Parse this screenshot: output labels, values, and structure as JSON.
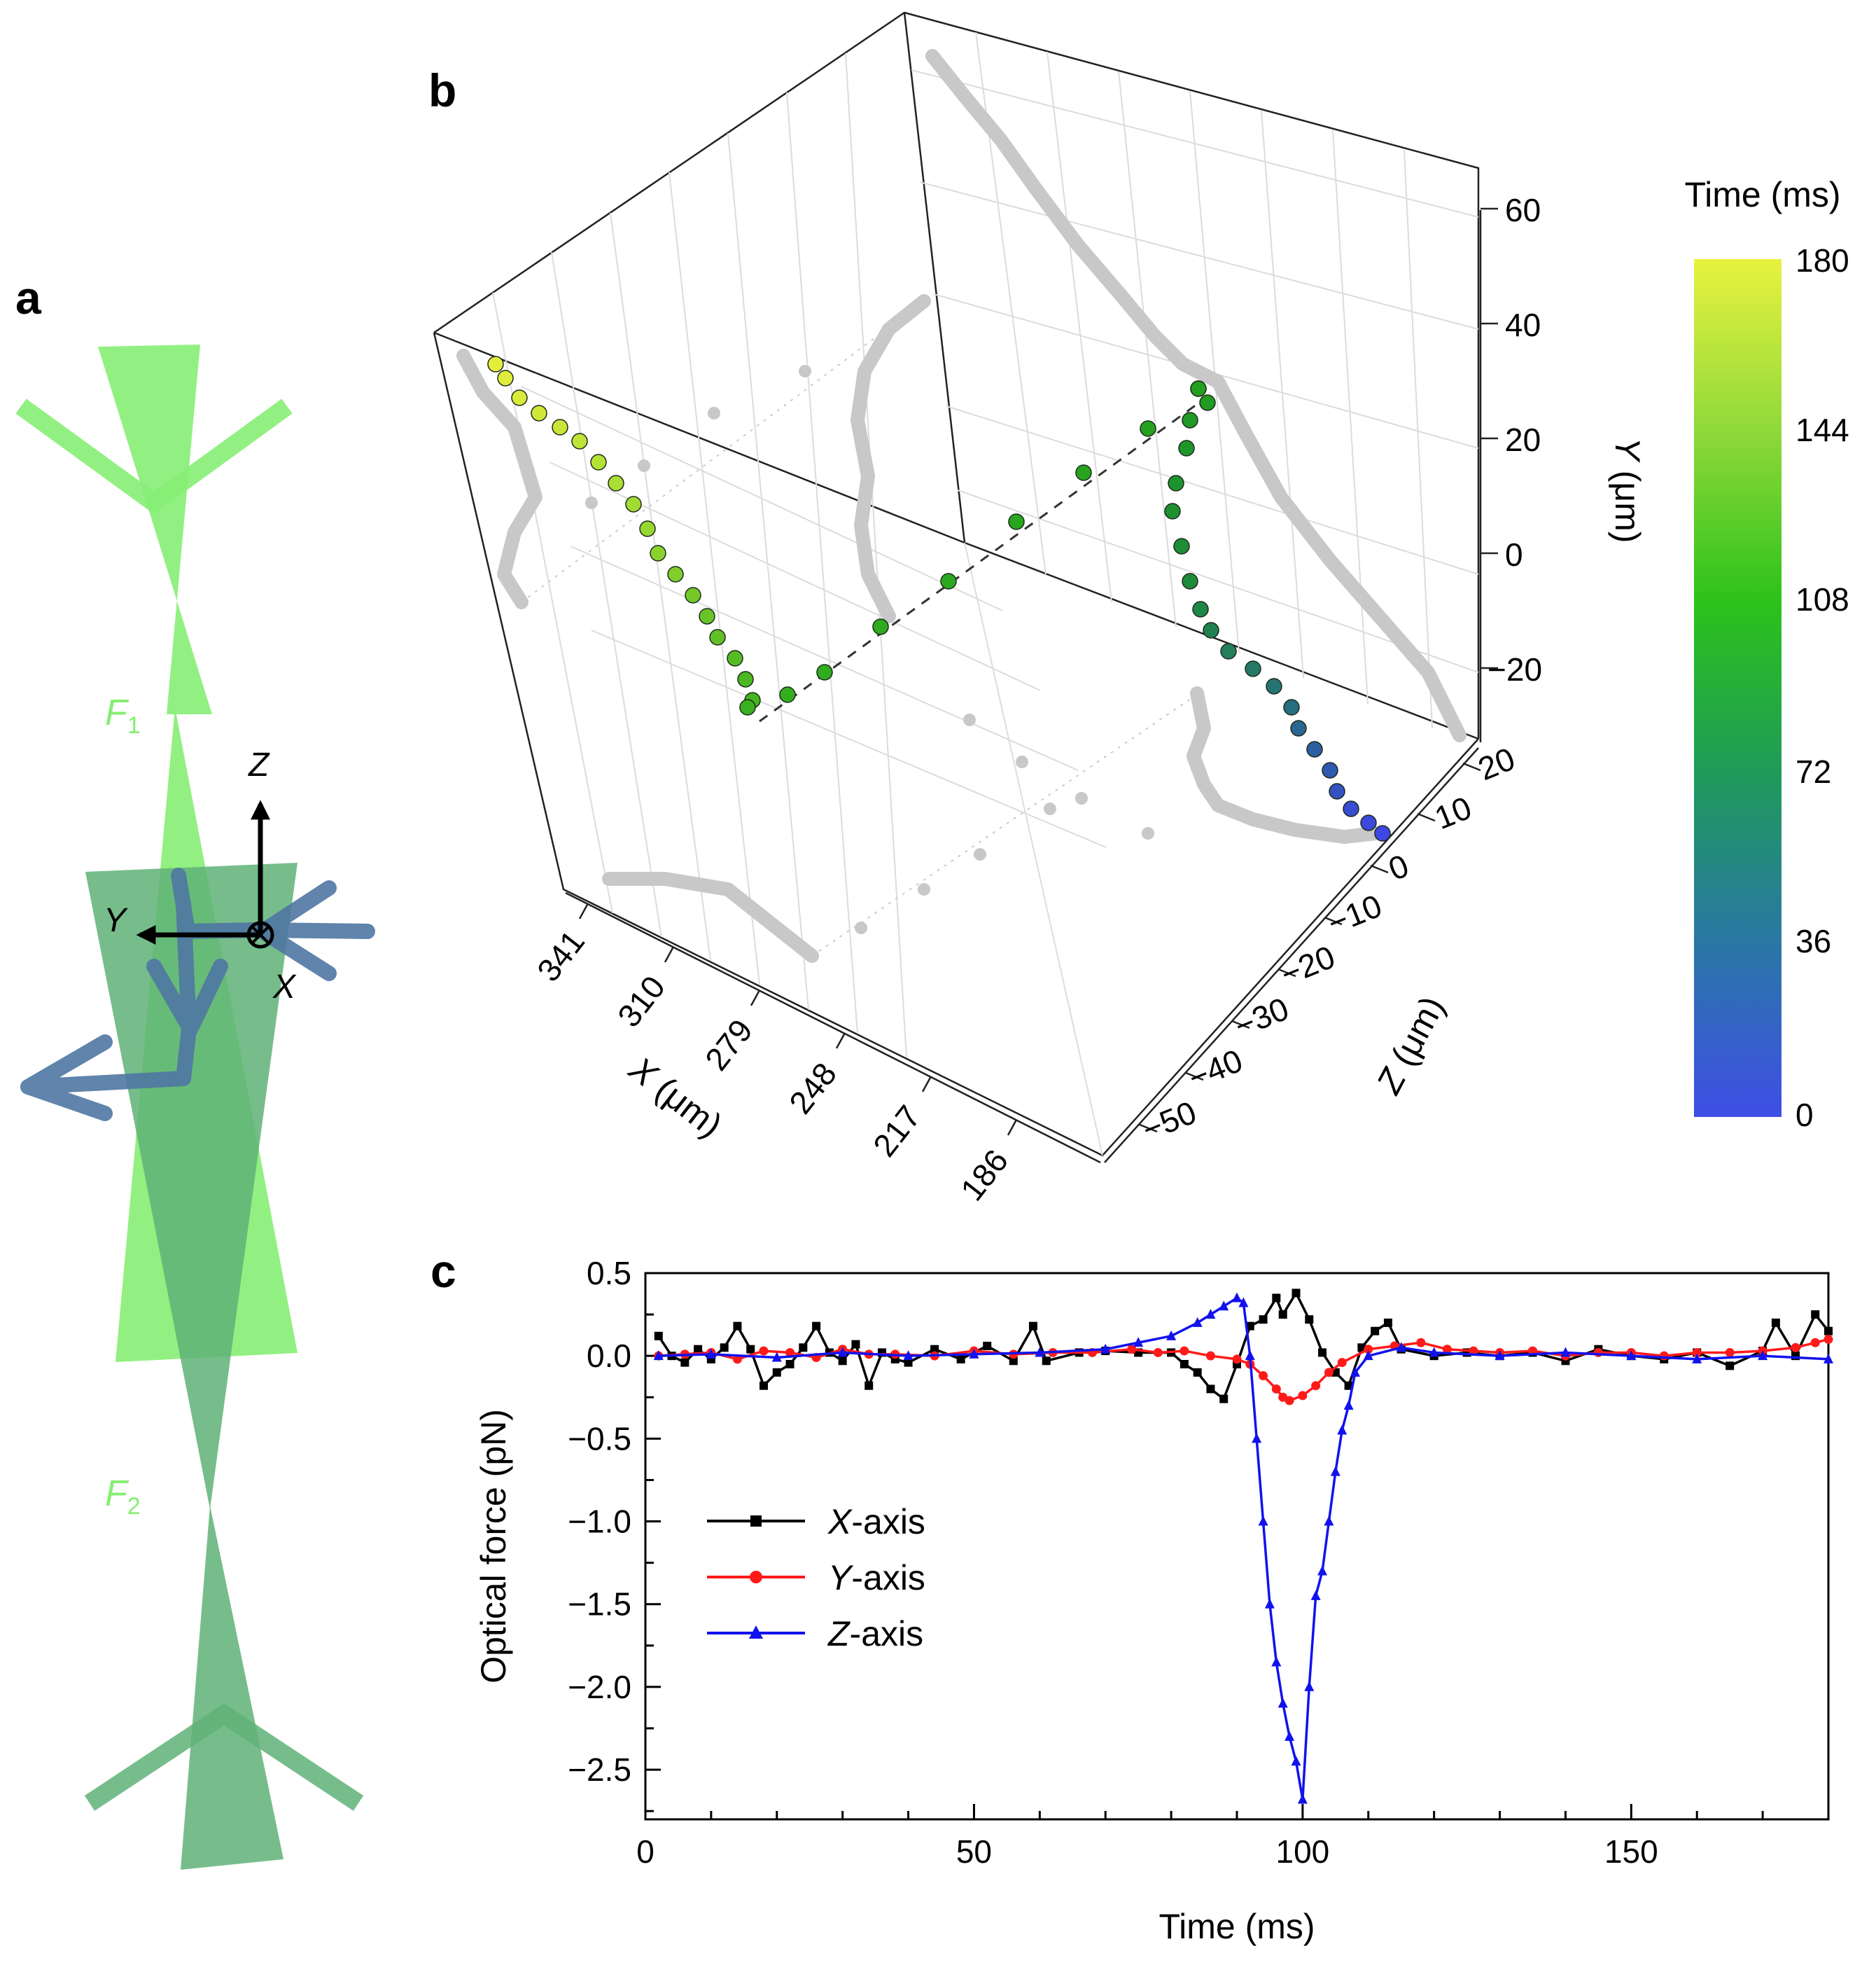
{
  "panels": {
    "a": "a",
    "b": "b",
    "c": "c"
  },
  "panel_a": {
    "beam_labels": [
      "F1",
      "F2"
    ],
    "beam_label_main": "F",
    "beam_label_subs": [
      "1",
      "2"
    ],
    "axis_labels": {
      "z": "Z",
      "y": "Y",
      "x": "X"
    },
    "colors": {
      "beam_top": "#86ee74",
      "beam_bottom": "#5fb277",
      "arrows": "#4f77a3",
      "axes": "#000000"
    }
  },
  "panel_b": {
    "type": "scatter3d",
    "x_axis": {
      "label_var": "X",
      "label_unit": " (μm)",
      "ticks": [
        "341",
        "310",
        "279",
        "248",
        "217",
        "186"
      ]
    },
    "y_axis": {
      "label_var": "Y",
      "label_unit": " (μm)",
      "ticks": [
        "60",
        "40",
        "20",
        "0",
        "−20"
      ]
    },
    "z_axis": {
      "label_var": "Z",
      "label_unit": " (μm)",
      "ticks": [
        "20",
        "10",
        "0",
        "−10",
        "−20",
        "−30",
        "−40",
        "−50"
      ]
    },
    "colorbar": {
      "title": "Time (ms)",
      "ticks": [
        "180",
        "144",
        "108",
        "72",
        "36",
        "0"
      ],
      "range": [
        0,
        180
      ],
      "colors": [
        "#3f4ee6",
        "#2a77a6",
        "#1f9a5a",
        "#2cc21a",
        "#8fd93a",
        "#e8f23e"
      ]
    },
    "projection_color": "#c8c8c8"
  },
  "chart_data": {
    "type": "line",
    "xlabel": "Time (ms)",
    "ylabel": "Optical force (pN)",
    "xlim": [
      0,
      180
    ],
    "ylim": [
      -2.8,
      0.5
    ],
    "x_ticks": [
      "0",
      "50",
      "100",
      "150"
    ],
    "y_ticks": [
      "0.5",
      "0.0",
      "−0.5",
      "−1.0",
      "−1.5",
      "−2.0",
      "−2.5"
    ],
    "series": [
      {
        "name": "X-axis",
        "var": "X",
        "suffix": "-axis",
        "color": "#000000",
        "marker": "square",
        "points": [
          [
            2,
            0.12
          ],
          [
            4,
            0.0
          ],
          [
            6,
            -0.04
          ],
          [
            8,
            0.04
          ],
          [
            10,
            -0.02
          ],
          [
            12,
            0.05
          ],
          [
            14,
            0.18
          ],
          [
            16,
            0.04
          ],
          [
            18,
            -0.18
          ],
          [
            20,
            -0.1
          ],
          [
            22,
            -0.05
          ],
          [
            24,
            0.05
          ],
          [
            26,
            0.18
          ],
          [
            28,
            0.02
          ],
          [
            30,
            -0.03
          ],
          [
            32,
            0.07
          ],
          [
            34,
            -0.18
          ],
          [
            36,
            0.02
          ],
          [
            38,
            -0.02
          ],
          [
            40,
            -0.04
          ],
          [
            44,
            0.04
          ],
          [
            48,
            -0.02
          ],
          [
            52,
            0.06
          ],
          [
            56,
            -0.03
          ],
          [
            59,
            0.18
          ],
          [
            61,
            -0.03
          ],
          [
            66,
            0.02
          ],
          [
            70,
            0.03
          ],
          [
            75,
            0.02
          ],
          [
            80,
            0.02
          ],
          [
            82,
            -0.05
          ],
          [
            84,
            -0.1
          ],
          [
            86,
            -0.2
          ],
          [
            88,
            -0.26
          ],
          [
            90,
            -0.05
          ],
          [
            92,
            0.18
          ],
          [
            94,
            0.22
          ],
          [
            96,
            0.35
          ],
          [
            97,
            0.25
          ],
          [
            99,
            0.38
          ],
          [
            101,
            0.22
          ],
          [
            103,
            0.02
          ],
          [
            105,
            -0.1
          ],
          [
            107,
            -0.18
          ],
          [
            109,
            0.05
          ],
          [
            111,
            0.15
          ],
          [
            113,
            0.2
          ],
          [
            115,
            0.04
          ],
          [
            120,
            0.0
          ],
          [
            125,
            0.02
          ],
          [
            130,
            0.0
          ],
          [
            135,
            0.02
          ],
          [
            140,
            -0.03
          ],
          [
            145,
            0.04
          ],
          [
            150,
            0.0
          ],
          [
            155,
            -0.02
          ],
          [
            160,
            0.02
          ],
          [
            165,
            -0.06
          ],
          [
            170,
            0.03
          ],
          [
            172,
            0.2
          ],
          [
            175,
            0.0
          ],
          [
            178,
            0.25
          ],
          [
            180,
            0.15
          ]
        ]
      },
      {
        "name": "Y-axis",
        "var": "Y",
        "suffix": "-axis",
        "color": "#ff1a1a",
        "marker": "circle",
        "points": [
          [
            2,
            0.0
          ],
          [
            6,
            0.01
          ],
          [
            10,
            0.02
          ],
          [
            14,
            -0.02
          ],
          [
            18,
            0.03
          ],
          [
            22,
            0.02
          ],
          [
            26,
            -0.01
          ],
          [
            30,
            0.04
          ],
          [
            34,
            0.01
          ],
          [
            38,
            0.01
          ],
          [
            44,
            0.0
          ],
          [
            50,
            0.03
          ],
          [
            56,
            0.01
          ],
          [
            62,
            0.02
          ],
          [
            68,
            0.02
          ],
          [
            74,
            0.04
          ],
          [
            78,
            0.02
          ],
          [
            82,
            0.03
          ],
          [
            86,
            0.0
          ],
          [
            90,
            -0.02
          ],
          [
            92,
            -0.05
          ],
          [
            94,
            -0.12
          ],
          [
            96,
            -0.2
          ],
          [
            97,
            -0.25
          ],
          [
            98,
            -0.27
          ],
          [
            100,
            -0.24
          ],
          [
            102,
            -0.18
          ],
          [
            104,
            -0.1
          ],
          [
            106,
            -0.04
          ],
          [
            110,
            0.04
          ],
          [
            114,
            0.06
          ],
          [
            118,
            0.08
          ],
          [
            122,
            0.04
          ],
          [
            126,
            0.03
          ],
          [
            130,
            0.02
          ],
          [
            135,
            0.03
          ],
          [
            140,
            0.0
          ],
          [
            145,
            0.02
          ],
          [
            150,
            0.02
          ],
          [
            155,
            0.0
          ],
          [
            160,
            0.02
          ],
          [
            165,
            0.02
          ],
          [
            170,
            0.03
          ],
          [
            175,
            0.05
          ],
          [
            178,
            0.08
          ],
          [
            180,
            0.1
          ]
        ]
      },
      {
        "name": "Z-axis",
        "var": "Z",
        "suffix": "-axis",
        "color": "#1212ee",
        "marker": "triangle",
        "points": [
          [
            2,
            0.0
          ],
          [
            10,
            0.01
          ],
          [
            20,
            -0.01
          ],
          [
            30,
            0.02
          ],
          [
            40,
            0.0
          ],
          [
            50,
            0.01
          ],
          [
            60,
            0.02
          ],
          [
            70,
            0.04
          ],
          [
            75,
            0.08
          ],
          [
            80,
            0.12
          ],
          [
            84,
            0.2
          ],
          [
            86,
            0.25
          ],
          [
            88,
            0.3
          ],
          [
            90,
            0.35
          ],
          [
            91,
            0.32
          ],
          [
            92,
            0.0
          ],
          [
            93,
            -0.5
          ],
          [
            94,
            -1.0
          ],
          [
            95,
            -1.5
          ],
          [
            96,
            -1.85
          ],
          [
            97,
            -2.1
          ],
          [
            98,
            -2.3
          ],
          [
            99,
            -2.45
          ],
          [
            100,
            -2.68
          ],
          [
            101,
            -2.0
          ],
          [
            102,
            -1.45
          ],
          [
            103,
            -1.3
          ],
          [
            104,
            -1.0
          ],
          [
            105,
            -0.7
          ],
          [
            106,
            -0.45
          ],
          [
            107,
            -0.3
          ],
          [
            108,
            -0.1
          ],
          [
            110,
            0.0
          ],
          [
            115,
            0.05
          ],
          [
            120,
            0.02
          ],
          [
            130,
            0.0
          ],
          [
            140,
            0.02
          ],
          [
            150,
            0.0
          ],
          [
            160,
            -0.02
          ],
          [
            170,
            0.0
          ],
          [
            180,
            -0.02
          ]
        ]
      }
    ]
  }
}
